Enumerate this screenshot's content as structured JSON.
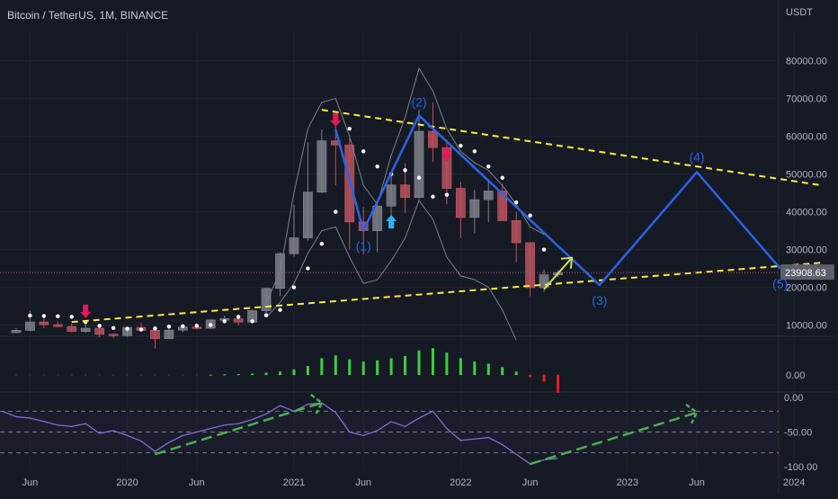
{
  "header": {
    "title": "Bitcoin / TetherUS, 1M, BINANCE",
    "currency": "USDT"
  },
  "price_axis": {
    "ticks": [
      "80000.00",
      "70000.00",
      "60000.00",
      "50000.00",
      "40000.00",
      "30000.00",
      "20000.00",
      "10000.00"
    ]
  },
  "macd_axis": {
    "ticks": [
      "0.00"
    ]
  },
  "osc_axis": {
    "ticks": [
      "0.00",
      "-50.00",
      "-100.00"
    ]
  },
  "last_price": {
    "label": "23908.63",
    "value": 23908.63,
    "color": "#5d606b"
  },
  "x_axis": {
    "ticks": [
      "Jun",
      "2020",
      "Jun",
      "2021",
      "Jun",
      "2022",
      "Jun",
      "2023",
      "Jun",
      "2024"
    ]
  },
  "wave_labels": [
    "(1)",
    "(2)",
    "(3)",
    "(4)",
    "(5)"
  ],
  "colors": {
    "background": "#161a25",
    "candle_up": "#7c8088",
    "candle_down": "#b8545f",
    "wave_line": "#2b63e8",
    "trendline": "#ffeb3b",
    "osc_line": "#7e6fd1",
    "osc_arrow": "#4caf50",
    "macd_up": "#3ecf3e",
    "macd_down": "#e02020",
    "arrow_down": "#e6175a",
    "arrow_up": "#29b6f6"
  },
  "chart_data": [
    {
      "type": "candlestick",
      "title": "Bitcoin / TetherUS, 1M, BINANCE",
      "ylabel": "USDT",
      "ylim": [
        7500,
        88000
      ],
      "x_range": [
        "2019-04",
        "2024-03"
      ],
      "candles": [
        {
          "t": "2019-05",
          "o": 8000,
          "h": 9200,
          "l": 7800,
          "c": 8600
        },
        {
          "t": "2019-06",
          "o": 8600,
          "h": 13800,
          "l": 8300,
          "c": 10800
        },
        {
          "t": "2019-07",
          "o": 10800,
          "h": 12200,
          "l": 9200,
          "c": 10100
        },
        {
          "t": "2019-08",
          "o": 10100,
          "h": 11000,
          "l": 9400,
          "c": 9600
        },
        {
          "t": "2019-09",
          "o": 9600,
          "h": 10400,
          "l": 8100,
          "c": 8300
        },
        {
          "t": "2019-10",
          "o": 8300,
          "h": 10300,
          "l": 7900,
          "c": 9150
        },
        {
          "t": "2019-11",
          "o": 9150,
          "h": 9500,
          "l": 6800,
          "c": 7550
        },
        {
          "t": "2019-12",
          "o": 7550,
          "h": 7700,
          "l": 6500,
          "c": 7200
        },
        {
          "t": "2020-01",
          "o": 7200,
          "h": 9600,
          "l": 6900,
          "c": 9350
        },
        {
          "t": "2020-02",
          "o": 9350,
          "h": 10500,
          "l": 8400,
          "c": 8600
        },
        {
          "t": "2020-03",
          "o": 8600,
          "h": 9200,
          "l": 3800,
          "c": 6400
        },
        {
          "t": "2020-04",
          "o": 6400,
          "h": 9500,
          "l": 6200,
          "c": 8650
        },
        {
          "t": "2020-05",
          "o": 8650,
          "h": 10100,
          "l": 8100,
          "c": 9450
        },
        {
          "t": "2020-06",
          "o": 9450,
          "h": 10400,
          "l": 8900,
          "c": 9150
        },
        {
          "t": "2020-07",
          "o": 9150,
          "h": 11450,
          "l": 8950,
          "c": 11350
        },
        {
          "t": "2020-08",
          "o": 11350,
          "h": 12500,
          "l": 10600,
          "c": 11650
        },
        {
          "t": "2020-09",
          "o": 11650,
          "h": 12100,
          "l": 9850,
          "c": 10780
        },
        {
          "t": "2020-10",
          "o": 10780,
          "h": 14100,
          "l": 10400,
          "c": 13800
        },
        {
          "t": "2020-11",
          "o": 13800,
          "h": 19900,
          "l": 13200,
          "c": 19700
        },
        {
          "t": "2020-12",
          "o": 19700,
          "h": 29300,
          "l": 17600,
          "c": 28900
        },
        {
          "t": "2021-01",
          "o": 28900,
          "h": 41900,
          "l": 28100,
          "c": 33100
        },
        {
          "t": "2021-02",
          "o": 33100,
          "h": 58400,
          "l": 32300,
          "c": 45200
        },
        {
          "t": "2021-03",
          "o": 45200,
          "h": 61800,
          "l": 45000,
          "c": 58800
        },
        {
          "t": "2021-04",
          "o": 58800,
          "h": 64900,
          "l": 47000,
          "c": 57700
        },
        {
          "t": "2021-05",
          "o": 57700,
          "h": 59500,
          "l": 30000,
          "c": 37300
        },
        {
          "t": "2021-06",
          "o": 37300,
          "h": 41300,
          "l": 28800,
          "c": 35000
        },
        {
          "t": "2021-07",
          "o": 35000,
          "h": 42500,
          "l": 29300,
          "c": 41500
        },
        {
          "t": "2021-08",
          "o": 41500,
          "h": 50500,
          "l": 37300,
          "c": 47100
        },
        {
          "t": "2021-09",
          "o": 47100,
          "h": 52900,
          "l": 39600,
          "c": 43800
        },
        {
          "t": "2021-10",
          "o": 43800,
          "h": 67000,
          "l": 43300,
          "c": 61300
        },
        {
          "t": "2021-11",
          "o": 61300,
          "h": 69000,
          "l": 53200,
          "c": 57000
        },
        {
          "t": "2021-12",
          "o": 57000,
          "h": 59100,
          "l": 42000,
          "c": 46200
        },
        {
          "t": "2022-01",
          "o": 46200,
          "h": 47900,
          "l": 33000,
          "c": 38500
        },
        {
          "t": "2022-02",
          "o": 38500,
          "h": 45800,
          "l": 34300,
          "c": 43200
        },
        {
          "t": "2022-03",
          "o": 43200,
          "h": 48200,
          "l": 37200,
          "c": 45500
        },
        {
          "t": "2022-04",
          "o": 45500,
          "h": 47400,
          "l": 37700,
          "c": 37650
        },
        {
          "t": "2022-05",
          "o": 37650,
          "h": 40000,
          "l": 26700,
          "c": 31800
        },
        {
          "t": "2022-06",
          "o": 31800,
          "h": 31900,
          "l": 17600,
          "c": 19900
        },
        {
          "t": "2022-07",
          "o": 19900,
          "h": 24700,
          "l": 18800,
          "c": 23300
        },
        {
          "t": "2022-08",
          "o": 23300,
          "h": 24500,
          "l": 22700,
          "c": 23900
        }
      ],
      "stop_dots": [
        {
          "t": "2019-06",
          "v": 12500
        },
        {
          "t": "2019-07",
          "v": 12400
        },
        {
          "t": "2019-08",
          "v": 12300
        },
        {
          "t": "2019-09",
          "v": 12200
        },
        {
          "t": "2019-10",
          "v": 10800
        },
        {
          "t": "2019-11",
          "v": 9800
        },
        {
          "t": "2019-12",
          "v": 9200
        },
        {
          "t": "2020-01",
          "v": 9000
        },
        {
          "t": "2020-02",
          "v": 8800
        },
        {
          "t": "2020-03",
          "v": 9100
        },
        {
          "t": "2020-04",
          "v": 9600
        },
        {
          "t": "2020-05",
          "v": 9700
        },
        {
          "t": "2020-06",
          "v": 9800
        },
        {
          "t": "2020-07",
          "v": 10000
        },
        {
          "t": "2020-08",
          "v": 11000
        },
        {
          "t": "2020-09",
          "v": 12200
        },
        {
          "t": "2020-10",
          "v": 11000
        },
        {
          "t": "2020-11",
          "v": 12600
        },
        {
          "t": "2020-12",
          "v": 14000
        },
        {
          "t": "2021-01",
          "v": 20000
        },
        {
          "t": "2021-02",
          "v": 25000
        },
        {
          "t": "2021-03",
          "v": 31500
        },
        {
          "t": "2021-04",
          "v": 40000
        },
        {
          "t": "2021-05",
          "v": 62000
        },
        {
          "t": "2021-06",
          "v": 56000
        },
        {
          "t": "2021-07",
          "v": 52000
        },
        {
          "t": "2021-08",
          "v": 50000
        },
        {
          "t": "2021-09",
          "v": 51000
        },
        {
          "t": "2021-10",
          "v": 49000
        },
        {
          "t": "2021-11",
          "v": 44000
        },
        {
          "t": "2021-12",
          "v": 44500
        },
        {
          "t": "2022-01",
          "v": 57500
        },
        {
          "t": "2022-02",
          "v": 56000
        },
        {
          "t": "2022-03",
          "v": 52000
        },
        {
          "t": "2022-04",
          "v": 49000
        },
        {
          "t": "2022-05",
          "v": 42500
        },
        {
          "t": "2022-06",
          "v": 39000
        },
        {
          "t": "2022-07",
          "v": 30000
        }
      ],
      "envelope_upper": [
        {
          "t": "2020-11",
          "v": 16000
        },
        {
          "t": "2020-12",
          "v": 24000
        },
        {
          "t": "2021-01",
          "v": 45000
        },
        {
          "t": "2021-02",
          "v": 62000
        },
        {
          "t": "2021-03",
          "v": 69000
        },
        {
          "t": "2021-04",
          "v": 70000
        },
        {
          "t": "2021-05",
          "v": 60000
        },
        {
          "t": "2021-06",
          "v": 47000
        },
        {
          "t": "2021-07",
          "v": 42000
        },
        {
          "t": "2021-08",
          "v": 55000
        },
        {
          "t": "2021-09",
          "v": 65000
        },
        {
          "t": "2021-10",
          "v": 78000
        },
        {
          "t": "2021-11",
          "v": 72000
        },
        {
          "t": "2021-12",
          "v": 62000
        },
        {
          "t": "2022-01",
          "v": 56000
        },
        {
          "t": "2022-02",
          "v": 53000
        },
        {
          "t": "2022-03",
          "v": 51000
        },
        {
          "t": "2022-04",
          "v": 47000
        },
        {
          "t": "2022-05",
          "v": 42000
        },
        {
          "t": "2022-06",
          "v": 36000
        },
        {
          "t": "2022-07",
          "v": 34000
        }
      ],
      "envelope_lower": [
        {
          "t": "2020-11",
          "v": 12000
        },
        {
          "t": "2020-12",
          "v": 16000
        },
        {
          "t": "2021-01",
          "v": 21000
        },
        {
          "t": "2021-02",
          "v": 29000
        },
        {
          "t": "2021-03",
          "v": 35000
        },
        {
          "t": "2021-04",
          "v": 36000
        },
        {
          "t": "2021-05",
          "v": 28000
        },
        {
          "t": "2021-06",
          "v": 21000
        },
        {
          "t": "2021-07",
          "v": 22000
        },
        {
          "t": "2021-08",
          "v": 27000
        },
        {
          "t": "2021-09",
          "v": 33000
        },
        {
          "t": "2021-10",
          "v": 43000
        },
        {
          "t": "2021-11",
          "v": 38000
        },
        {
          "t": "2021-12",
          "v": 28000
        },
        {
          "t": "2022-01",
          "v": 23000
        },
        {
          "t": "2022-02",
          "v": 22000
        },
        {
          "t": "2022-03",
          "v": 20000
        },
        {
          "t": "2022-04",
          "v": 14000
        },
        {
          "t": "2022-05",
          "v": 6000
        }
      ],
      "elliott_wave": [
        {
          "t": "2021-04",
          "v": 61800,
          "label": ""
        },
        {
          "t": "2021-06",
          "v": 35000,
          "label": "(1)"
        },
        {
          "t": "2021-10",
          "v": 65500,
          "label": "(2)"
        },
        {
          "t": "2022-11",
          "v": 20600,
          "label": "(3)"
        },
        {
          "t": "2023-06",
          "v": 50500,
          "label": "(4)"
        },
        {
          "t": "2023-12",
          "v": 25000,
          "label": "(5)"
        }
      ],
      "trendlines": [
        {
          "from": {
            "t": "2021-03",
            "v": 67000
          },
          "to": {
            "t": "2024-03",
            "v": 47000
          }
        },
        {
          "from": {
            "t": "2019-09",
            "v": 10800
          },
          "to": {
            "t": "2024-03",
            "v": 26500
          }
        }
      ],
      "projection_arrow": {
        "from": {
          "t": "2022-07",
          "v": 19500
        },
        "to": {
          "t": "2022-09",
          "v": 27800
        }
      },
      "arrows": [
        {
          "t": "2019-10",
          "v": 13500,
          "dir": "down"
        },
        {
          "t": "2021-04",
          "v": 64200,
          "dir": "down"
        },
        {
          "t": "2021-12",
          "v": 55000,
          "dir": "down"
        },
        {
          "t": "2021-08",
          "v": 37500,
          "dir": "up"
        }
      ],
      "last_price": 23908.63
    },
    {
      "type": "bar",
      "title": "",
      "ylim": [
        -4,
        6
      ],
      "values": [
        {
          "t": "2020-07",
          "v": 0.05
        },
        {
          "t": "2020-08",
          "v": 0.1
        },
        {
          "t": "2020-09",
          "v": 0.15
        },
        {
          "t": "2020-10",
          "v": 0.25
        },
        {
          "t": "2020-11",
          "v": 0.4
        },
        {
          "t": "2020-12",
          "v": 0.6
        },
        {
          "t": "2021-01",
          "v": 1.0
        },
        {
          "t": "2021-02",
          "v": 1.6
        },
        {
          "t": "2021-03",
          "v": 3.0
        },
        {
          "t": "2021-04",
          "v": 3.5
        },
        {
          "t": "2021-05",
          "v": 2.8
        },
        {
          "t": "2021-06",
          "v": 2.4
        },
        {
          "t": "2021-07",
          "v": 2.6
        },
        {
          "t": "2021-08",
          "v": 3.0
        },
        {
          "t": "2021-09",
          "v": 3.4
        },
        {
          "t": "2021-10",
          "v": 4.4
        },
        {
          "t": "2021-11",
          "v": 4.8
        },
        {
          "t": "2021-12",
          "v": 4.0
        },
        {
          "t": "2022-01",
          "v": 3.0
        },
        {
          "t": "2022-02",
          "v": 2.4
        },
        {
          "t": "2022-03",
          "v": 2.0
        },
        {
          "t": "2022-04",
          "v": 1.4
        },
        {
          "t": "2022-05",
          "v": 0.6
        },
        {
          "t": "2022-06",
          "v": -0.4
        },
        {
          "t": "2022-07",
          "v": -1.2
        },
        {
          "t": "2022-08",
          "v": -3.2
        }
      ]
    },
    {
      "type": "line",
      "title": "",
      "ylim": [
        -105,
        5
      ],
      "bands": [
        -20,
        -50,
        -80
      ],
      "series": [
        {
          "values": [
            {
              "t": "2019-04",
              "v": -20
            },
            {
              "t": "2019-05",
              "v": -28
            },
            {
              "t": "2019-06",
              "v": -30
            },
            {
              "t": "2019-07",
              "v": -35
            },
            {
              "t": "2019-08",
              "v": -40
            },
            {
              "t": "2019-09",
              "v": -42
            },
            {
              "t": "2019-10",
              "v": -38
            },
            {
              "t": "2019-11",
              "v": -52
            },
            {
              "t": "2019-12",
              "v": -48
            },
            {
              "t": "2020-01",
              "v": -55
            },
            {
              "t": "2020-02",
              "v": -63
            },
            {
              "t": "2020-03",
              "v": -78
            },
            {
              "t": "2020-04",
              "v": -65
            },
            {
              "t": "2020-05",
              "v": -55
            },
            {
              "t": "2020-06",
              "v": -50
            },
            {
              "t": "2020-07",
              "v": -45
            },
            {
              "t": "2020-08",
              "v": -40
            },
            {
              "t": "2020-09",
              "v": -38
            },
            {
              "t": "2020-10",
              "v": -32
            },
            {
              "t": "2020-11",
              "v": -24
            },
            {
              "t": "2020-12",
              "v": -12
            },
            {
              "t": "2021-01",
              "v": -20
            },
            {
              "t": "2021-02",
              "v": -10
            },
            {
              "t": "2021-03",
              "v": -8
            },
            {
              "t": "2021-04",
              "v": -22
            },
            {
              "t": "2021-05",
              "v": -50
            },
            {
              "t": "2021-06",
              "v": -55
            },
            {
              "t": "2021-07",
              "v": -48
            },
            {
              "t": "2021-08",
              "v": -35
            },
            {
              "t": "2021-09",
              "v": -42
            },
            {
              "t": "2021-10",
              "v": -30
            },
            {
              "t": "2021-11",
              "v": -20
            },
            {
              "t": "2021-12",
              "v": -45
            },
            {
              "t": "2022-01",
              "v": -62
            },
            {
              "t": "2022-02",
              "v": -60
            },
            {
              "t": "2022-03",
              "v": -58
            },
            {
              "t": "2022-04",
              "v": -68
            },
            {
              "t": "2022-05",
              "v": -82
            },
            {
              "t": "2022-06",
              "v": -96
            },
            {
              "t": "2022-07",
              "v": -90
            },
            {
              "t": "2022-08",
              "v": -88
            }
          ]
        }
      ],
      "divergence_arrows": [
        {
          "from": {
            "t": "2020-03",
            "v": -82
          },
          "to": {
            "t": "2021-03",
            "v": -8
          }
        },
        {
          "from": {
            "t": "2022-06",
            "v": -96
          },
          "to": {
            "t": "2023-06",
            "v": -22
          }
        }
      ]
    }
  ]
}
